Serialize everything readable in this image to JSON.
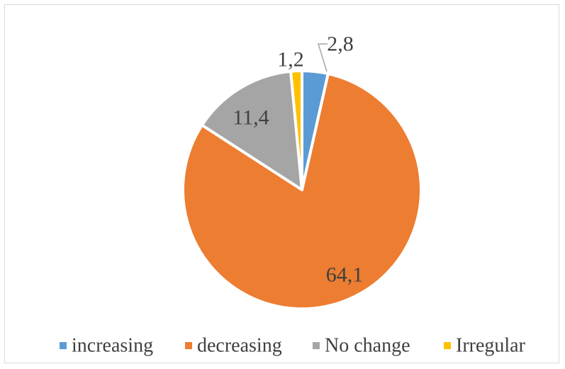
{
  "chart_data": {
    "type": "pie",
    "title": "",
    "slices": [
      {
        "name": "increasing",
        "value": 2.8,
        "label": "2,8",
        "color": "#5B9BD5"
      },
      {
        "name": "decreasing",
        "value": 64.1,
        "label": "64,1",
        "color": "#ED7D31"
      },
      {
        "name": "No change",
        "value": 11.4,
        "label": "11,4",
        "color": "#A5A5A5"
      },
      {
        "name": "Irregular",
        "value": 1.2,
        "label": "1,2",
        "color": "#FFC000"
      }
    ],
    "legend_position": "bottom",
    "start_angle": "12 o'clock",
    "direction": "clockwise"
  }
}
